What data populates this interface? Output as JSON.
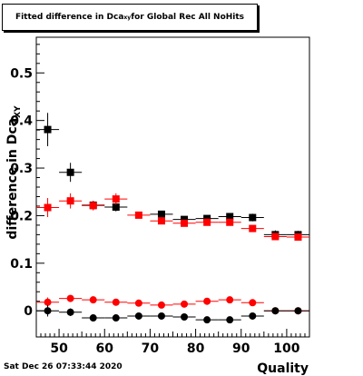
{
  "title": {
    "prefix": "Fitted difference in Dca",
    "subscript": "xy",
    "suffix": " for Global Rec All NoHits"
  },
  "footer": {
    "date": "Sat Dec 26 07:33:44 2020"
  },
  "chart_data": {
    "type": "scatter",
    "xlabel": "Quality",
    "ylabel": "difference in Dca",
    "ylabel_subscript": "XY",
    "xlim": [
      45,
      105
    ],
    "ylim": [
      -0.055,
      0.575
    ],
    "xticks": [
      50,
      60,
      70,
      80,
      90,
      100
    ],
    "yticks": [
      0,
      0.1,
      0.2,
      0.3,
      0.4,
      0.5
    ],
    "ytick_labels": [
      "0",
      "0.1",
      "0.2",
      "0.3",
      "0.4",
      "0.5"
    ],
    "grid": false,
    "series": [
      {
        "marker": "square",
        "color": "#000000",
        "x_err": 2.5,
        "x": [
          47.5,
          52.5,
          57.5,
          62.5,
          72.5,
          77.5,
          82.5,
          87.5,
          92.5,
          97.5,
          102.5
        ],
        "y": [
          0.381,
          0.291,
          0.222,
          0.218,
          0.203,
          0.192,
          0.194,
          0.198,
          0.196,
          0.16,
          0.16
        ],
        "y_err": [
          0.035,
          0.02,
          0.009,
          0.009,
          0.006,
          0.006,
          0.006,
          0.007,
          0.008,
          0.009,
          0.008
        ]
      },
      {
        "marker": "square",
        "color": "#ff0000",
        "x_err": 2.5,
        "x": [
          47.5,
          52.5,
          57.5,
          62.5,
          67.5,
          72.5,
          77.5,
          82.5,
          87.5,
          92.5,
          97.5,
          102.5
        ],
        "y": [
          0.217,
          0.231,
          0.221,
          0.235,
          0.201,
          0.189,
          0.184,
          0.186,
          0.186,
          0.173,
          0.156,
          0.155
        ],
        "y_err": [
          0.02,
          0.016,
          0.01,
          0.012,
          0.006,
          0.005,
          0.007,
          0.006,
          0.007,
          0.006,
          0.005,
          0.004
        ]
      },
      {
        "marker": "circle",
        "color": "#ff0000",
        "x_err": 2.5,
        "x": [
          47.5,
          52.5,
          57.5,
          62.5,
          67.5,
          72.5,
          77.5,
          82.5,
          87.5,
          92.5,
          97.5,
          102.5
        ],
        "y": [
          0.018,
          0.026,
          0.023,
          0.018,
          0.016,
          0.012,
          0.014,
          0.02,
          0.023,
          0.017,
          0.0,
          0.0
        ],
        "y_err": [
          0.01,
          0.007,
          0.005,
          0.005,
          0.004,
          0.004,
          0.004,
          0.004,
          0.005,
          0.004,
          0.003,
          0.003
        ]
      },
      {
        "marker": "circle",
        "color": "#000000",
        "x_err": 2.5,
        "x": [
          47.5,
          52.5,
          57.5,
          62.5,
          67.5,
          72.5,
          77.5,
          82.5,
          87.5,
          92.5,
          97.5,
          102.5
        ],
        "y": [
          0.0,
          -0.003,
          -0.015,
          -0.015,
          -0.011,
          -0.011,
          -0.013,
          -0.019,
          -0.019,
          -0.011,
          0.0,
          0.0
        ],
        "y_err": [
          0.012,
          0.008,
          0.005,
          0.005,
          0.004,
          0.004,
          0.004,
          0.004,
          0.004,
          0.004,
          0.003,
          0.003
        ]
      }
    ]
  }
}
